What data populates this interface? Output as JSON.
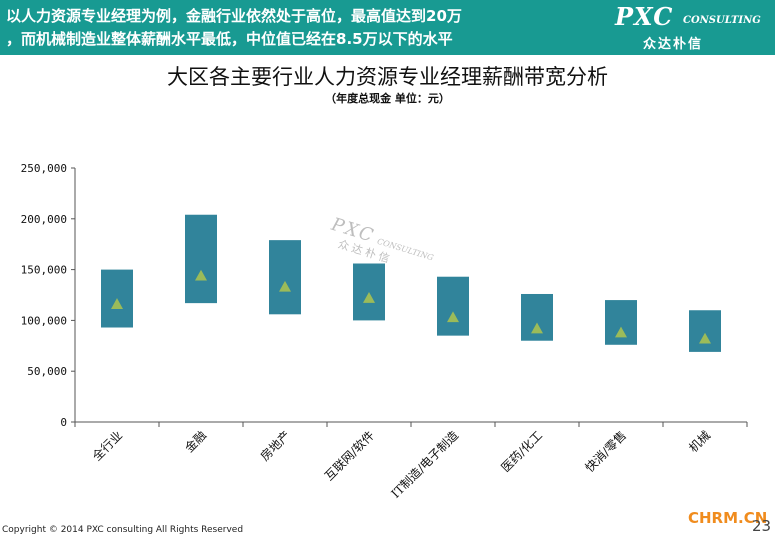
{
  "header": {
    "line1": "以人力资源专业经理为例，金融行业依然处于高位，最高值达到20万",
    "line2": "，而机械制造业整体薪酬水平最低，中位值已经在8.5万以下的水平",
    "bg_color": "#189a92"
  },
  "logo": {
    "pxc": "PXC",
    "consulting": "CONSULTING",
    "cn": "众达朴信"
  },
  "watermark": {
    "pxc": "PXC",
    "consulting": "CONSULTING",
    "cn": "众达朴信"
  },
  "chart_data": {
    "type": "bar",
    "title": "大区各主要行业人力资源专业经理薪酬带宽分析",
    "subtitle": "（年度总现金 单位：元）",
    "xlabel": "",
    "ylabel": "",
    "ylim": [
      0,
      250000
    ],
    "yticks": [
      0,
      50000,
      100000,
      150000,
      200000,
      250000
    ],
    "ytick_labels": [
      "0",
      "50,000",
      "100,000",
      "150,000",
      "200,000",
      "250,000"
    ],
    "grid": false,
    "legend": "none",
    "bar_color": "#31849b",
    "marker_color": "#9bbb59",
    "categories": [
      "全行业",
      "金融",
      "房地产",
      "互联网/软件",
      "IT制造/电子制造",
      "医药/化工",
      "快消/零售",
      "机械"
    ],
    "low": [
      93000,
      117000,
      106000,
      100000,
      85000,
      80000,
      76000,
      69000
    ],
    "high": [
      150000,
      204000,
      179000,
      156000,
      143000,
      126000,
      120000,
      110000
    ],
    "median": [
      116000,
      144000,
      133000,
      122000,
      103000,
      92000,
      88000,
      82000
    ]
  },
  "footer": {
    "copyright": "Copyright © 2014 PXC consulting All Rights Reserved",
    "site": "CHRM.CN",
    "page": "23"
  }
}
